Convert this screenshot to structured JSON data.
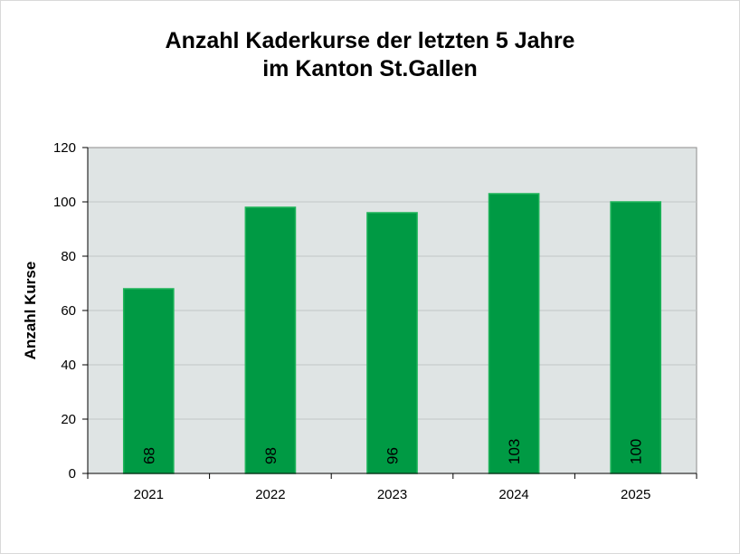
{
  "chart_data": {
    "type": "bar",
    "title_line1": "Anzahl Kaderkurse der letzten 5 Jahre",
    "title_line2": "im Kanton St.Gallen",
    "xlabel": "",
    "ylabel": "Anzahl Kurse",
    "categories": [
      "2021",
      "2022",
      "2023",
      "2024",
      "2025"
    ],
    "values": [
      68,
      98,
      96,
      103,
      100
    ],
    "data_labels": [
      "68",
      "98",
      "96",
      "103",
      "100"
    ],
    "yticks": [
      "0",
      "20",
      "40",
      "60",
      "80",
      "100",
      "120"
    ],
    "ylim": [
      0,
      120
    ],
    "grid": true,
    "legend": "none",
    "colors": {
      "bar": "#009a44",
      "bar_edge": "#1fb45a",
      "plot_bg": "#dfe4e4",
      "grid": "#c0c6c6"
    }
  }
}
